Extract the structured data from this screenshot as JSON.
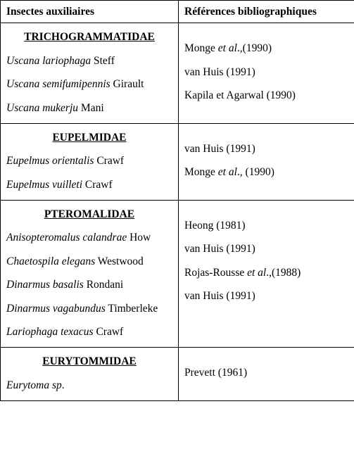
{
  "header": {
    "col1": "Insectes auxiliaires",
    "col2": "Références bibliographiques"
  },
  "sections": [
    {
      "family": "TRICHOGRAMMATIDAE",
      "rows": [
        {
          "species_it": "Uscana lariophaga",
          "species_rest": " Steff",
          "ref_pre": "Monge ",
          "ref_it": "et al",
          "ref_post": ".,(1990)"
        },
        {
          "species_it": "Uscana semifumipennis",
          "species_rest": " Girault",
          "ref_pre": "van Huis (1991)",
          "ref_it": "",
          "ref_post": ""
        },
        {
          "species_it": "Uscana mukerju",
          "species_rest": " Mani",
          "ref_pre": "Kapila et Agarwal (1990)",
          "ref_it": "",
          "ref_post": ""
        }
      ]
    },
    {
      "family": "EUPELMIDAE",
      "rows": [
        {
          "species_it": "Eupelmus orientalis",
          "species_rest": " Crawf",
          "ref_pre": "van Huis (1991)",
          "ref_it": "",
          "ref_post": ""
        },
        {
          "species_it": "Eupelmus vuilleti",
          "species_rest": " Crawf",
          "ref_pre": "Monge ",
          "ref_it": "et al",
          "ref_post": "., (1990)"
        }
      ]
    },
    {
      "family": "PTEROMALIDAE",
      "rows": [
        {
          "species_it": "Anisopteromalus calandrae",
          "species_rest": " How",
          "ref_pre": "Heong (1981)",
          "ref_it": "",
          "ref_post": ""
        },
        {
          "species_it": "Chaetospila elegans",
          "species_rest": " Westwood",
          "ref_pre": "van Huis (1991)",
          "ref_it": "",
          "ref_post": ""
        },
        {
          "species_it": "Dinarmus basalis",
          "species_rest": " Rondani",
          "ref_pre": "Rojas-Rousse ",
          "ref_it": "et al",
          "ref_post": ".,(1988)"
        },
        {
          "species_it": "Dinarmus vagabundus",
          "species_rest": " Timberleke",
          "ref_pre": "van Huis (1991)",
          "ref_it": "",
          "ref_post": ""
        },
        {
          "species_it": "Lariophaga texacus",
          "species_rest": " Crawf",
          "ref_pre": "",
          "ref_it": "",
          "ref_post": ""
        }
      ]
    },
    {
      "family": "EURYTOMMIDAE",
      "rows": [
        {
          "species_it": "Eurytoma sp",
          "species_rest": ".",
          "ref_pre": "Prevett (1961)",
          "ref_it": "",
          "ref_post": ""
        }
      ]
    }
  ]
}
